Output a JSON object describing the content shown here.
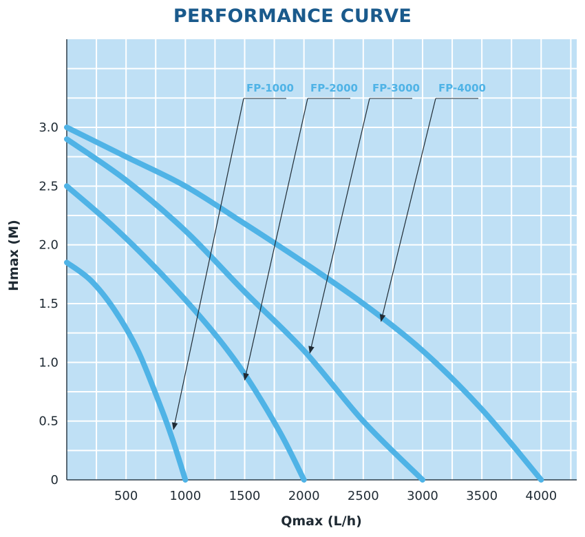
{
  "chart_data": {
    "type": "line",
    "title": "PERFORMANCE CURVE",
    "xlabel": "Qmax (L/h)",
    "ylabel": "Hmax (M)",
    "xlim": [
      0,
      4300
    ],
    "ylim": [
      0,
      3.75
    ],
    "x_ticks": [
      500,
      1000,
      1500,
      2000,
      2500,
      3000,
      3500,
      4000
    ],
    "x_tick_labels": [
      "500",
      "1000",
      "1500",
      "2000",
      "2500",
      "3000",
      "3500",
      "4000"
    ],
    "y_ticks": [
      0,
      0.5,
      1.0,
      1.5,
      2.0,
      2.5,
      3.0
    ],
    "y_tick_labels": [
      "0",
      "0.5",
      "1.0",
      "1.5",
      "2.0",
      "2.5",
      "3.0"
    ],
    "grid": true,
    "colors": {
      "background": "#bfe0f5",
      "grid": "#ffffff",
      "curve": "#4fb3e6",
      "title": "#1a5a8c",
      "arrow": "#1f2a33"
    },
    "series": [
      {
        "name": "FP-1000",
        "x": [
          0,
          200,
          400,
          600,
          800,
          900,
          1000
        ],
        "y": [
          1.85,
          1.7,
          1.45,
          1.1,
          0.6,
          0.32,
          0.0
        ]
      },
      {
        "name": "FP-2000",
        "x": [
          0,
          400,
          800,
          1200,
          1500,
          1800,
          2000
        ],
        "y": [
          2.5,
          2.15,
          1.75,
          1.3,
          0.9,
          0.4,
          0.0
        ]
      },
      {
        "name": "FP-3000",
        "x": [
          0,
          500,
          1000,
          1500,
          2000,
          2500,
          3000
        ],
        "y": [
          2.9,
          2.55,
          2.12,
          1.6,
          1.1,
          0.5,
          0.0
        ]
      },
      {
        "name": "FP-4000",
        "x": [
          0,
          500,
          1000,
          1500,
          2000,
          2500,
          3000,
          3500,
          4000
        ],
        "y": [
          3.0,
          2.75,
          2.5,
          2.18,
          1.85,
          1.5,
          1.1,
          0.6,
          0.0
        ]
      }
    ],
    "annotations": [
      {
        "series": "FP-1000",
        "point": [
          900,
          0.43
        ]
      },
      {
        "series": "FP-2000",
        "point": [
          1500,
          0.85
        ]
      },
      {
        "series": "FP-3000",
        "point": [
          2050,
          1.08
        ]
      },
      {
        "series": "FP-4000",
        "point": [
          2650,
          1.35
        ]
      }
    ]
  }
}
